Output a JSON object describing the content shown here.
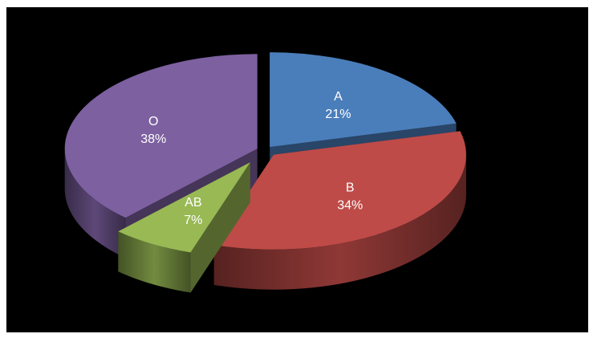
{
  "chart_data": {
    "type": "pie",
    "style": "3d-exploded",
    "title": "",
    "slices": [
      {
        "label": "A",
        "value": 21,
        "value_label": "21%",
        "color": "#4a7ebb"
      },
      {
        "label": "B",
        "value": 34,
        "value_label": "34%",
        "color": "#be4b48"
      },
      {
        "label": "AB",
        "value": 7,
        "value_label": "7%",
        "color": "#98b954"
      },
      {
        "label": "O",
        "value": 38,
        "value_label": "38%",
        "color": "#7d60a0"
      }
    ],
    "background": "#000000",
    "legend": "none"
  }
}
